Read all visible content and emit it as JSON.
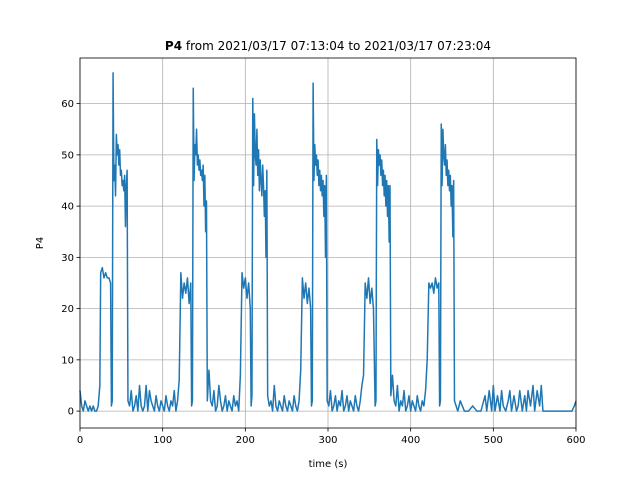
{
  "chart_data": {
    "type": "line",
    "title_bold": "P4",
    "title": "from 2021/03/17 07:13:04 to 2021/03/17 07:23:04",
    "xlabel": "time (s)",
    "ylabel": "P4",
    "color": "#1f77b4",
    "grid": true,
    "xlim": [
      0,
      600
    ],
    "xticks": [
      0,
      100,
      200,
      300,
      400,
      500,
      600
    ],
    "ylim": [
      -3.3,
      68.9
    ],
    "yticks": [
      0,
      10,
      20,
      30,
      40,
      50,
      60
    ],
    "x": [
      0,
      2,
      4,
      6,
      8,
      10,
      12,
      14,
      16,
      18,
      20,
      22,
      24,
      25,
      27,
      29,
      31,
      33,
      35,
      37,
      38,
      39,
      40,
      41,
      42,
      43,
      44,
      45,
      46,
      47,
      48,
      49,
      50,
      51,
      52,
      53,
      54,
      55,
      56,
      57,
      58,
      60,
      62,
      64,
      66,
      68,
      70,
      72,
      74,
      76,
      78,
      80,
      82,
      84,
      86,
      88,
      90,
      92,
      94,
      96,
      98,
      100,
      102,
      104,
      106,
      108,
      110,
      112,
      114,
      116,
      118,
      120,
      122,
      124,
      126,
      128,
      130,
      132,
      134,
      135,
      136,
      137,
      138,
      139,
      140,
      141,
      142,
      143,
      144,
      145,
      146,
      147,
      148,
      149,
      150,
      151,
      152,
      153,
      154,
      156,
      158,
      160,
      162,
      164,
      166,
      168,
      170,
      172,
      174,
      176,
      178,
      180,
      182,
      184,
      186,
      188,
      190,
      192,
      194,
      196,
      198,
      200,
      202,
      204,
      206,
      207,
      208,
      209,
      210,
      211,
      212,
      213,
      214,
      215,
      216,
      217,
      218,
      219,
      220,
      221,
      222,
      223,
      224,
      225,
      226,
      227,
      229,
      231,
      233,
      235,
      237,
      239,
      241,
      243,
      245,
      247,
      249,
      251,
      253,
      255,
      257,
      259,
      261,
      263,
      265,
      267,
      269,
      271,
      273,
      275,
      277,
      279,
      280,
      281,
      282,
      283,
      284,
      285,
      286,
      287,
      288,
      289,
      290,
      291,
      292,
      293,
      294,
      295,
      296,
      297,
      298,
      299,
      301,
      303,
      305,
      307,
      309,
      311,
      313,
      315,
      317,
      319,
      321,
      323,
      325,
      327,
      329,
      331,
      333,
      335,
      337,
      339,
      341,
      343,
      345,
      347,
      349,
      351,
      353,
      355,
      357,
      358,
      359,
      360,
      361,
      362,
      363,
      364,
      365,
      366,
      367,
      368,
      369,
      370,
      371,
      372,
      373,
      374,
      375,
      376,
      378,
      380,
      382,
      384,
      386,
      388,
      390,
      392,
      394,
      396,
      398,
      400,
      402,
      404,
      406,
      408,
      410,
      412,
      414,
      416,
      418,
      420,
      422,
      424,
      426,
      428,
      430,
      432,
      434,
      435,
      436,
      437,
      438,
      439,
      440,
      441,
      442,
      443,
      444,
      445,
      446,
      447,
      448,
      449,
      450,
      451,
      452,
      453,
      455,
      457,
      460,
      465,
      470,
      475,
      480,
      485,
      490,
      492,
      495,
      498,
      500,
      502,
      505,
      508,
      510,
      512,
      515,
      518,
      520,
      522,
      525,
      528,
      530,
      532,
      535,
      538,
      540,
      542,
      545,
      548,
      550,
      553,
      556,
      558,
      560,
      565,
      570,
      575,
      580,
      585,
      590,
      595,
      598,
      600
    ],
    "values": [
      4,
      1,
      0,
      2,
      1,
      0,
      1,
      0,
      1,
      0,
      0,
      1,
      5,
      27,
      28,
      26,
      27,
      26,
      26,
      25,
      1,
      2,
      66,
      45,
      48,
      42,
      54,
      50,
      52,
      48,
      51,
      46,
      47,
      44,
      45,
      43,
      46,
      36,
      44,
      47,
      2,
      1,
      4,
      0,
      1,
      3,
      0,
      5,
      1,
      0,
      1,
      5,
      0,
      4,
      2,
      1,
      0,
      3,
      1,
      0,
      2,
      1,
      0,
      3,
      1,
      0,
      2,
      1,
      4,
      0,
      2,
      6,
      27,
      22,
      25,
      23,
      26,
      21,
      25,
      1,
      2,
      63,
      45,
      52,
      50,
      55,
      48,
      50,
      47,
      49,
      46,
      47,
      45,
      48,
      40,
      46,
      35,
      41,
      2,
      8,
      2,
      1,
      4,
      0,
      1,
      5,
      2,
      0,
      1,
      3,
      0,
      2,
      1,
      0,
      3,
      1,
      2,
      0,
      7,
      27,
      24,
      26,
      22,
      25,
      20,
      1,
      3,
      61,
      44,
      58,
      50,
      48,
      55,
      46,
      51,
      43,
      49,
      45,
      42,
      48,
      44,
      38,
      43,
      30,
      47,
      3,
      1,
      2,
      0,
      5,
      1,
      0,
      2,
      1,
      0,
      3,
      1,
      0,
      2,
      1,
      0,
      3,
      1,
      0,
      2,
      8,
      26,
      22,
      25,
      21,
      24,
      20,
      1,
      2,
      64,
      45,
      52,
      48,
      50,
      46,
      49,
      44,
      47,
      43,
      46,
      42,
      45,
      38,
      44,
      30,
      46,
      2,
      1,
      4,
      0,
      1,
      3,
      0,
      2,
      1,
      4,
      0,
      1,
      3,
      0,
      2,
      1,
      0,
      3,
      1,
      0,
      2,
      5,
      7,
      25,
      22,
      26,
      21,
      24,
      20,
      1,
      2,
      53,
      44,
      51,
      48,
      50,
      46,
      49,
      44,
      47,
      42,
      46,
      40,
      45,
      38,
      44,
      33,
      44,
      3,
      7,
      2,
      1,
      5,
      0,
      2,
      1,
      4,
      0,
      1,
      3,
      0,
      2,
      1,
      0,
      3,
      1,
      0,
      2,
      1,
      4,
      10,
      25,
      24,
      25,
      23,
      26,
      24,
      25,
      1,
      2,
      56,
      44,
      55,
      50,
      48,
      52,
      46,
      49,
      44,
      47,
      43,
      46,
      40,
      44,
      34,
      45,
      2,
      1,
      0,
      2,
      0,
      0,
      1,
      0,
      0,
      3,
      0,
      4,
      0,
      5,
      0,
      3,
      0,
      4,
      1,
      0,
      2,
      4,
      0,
      3,
      0,
      1,
      4,
      0,
      3,
      0,
      4,
      1,
      5,
      0,
      4,
      1,
      5,
      0,
      0,
      0,
      0,
      0,
      0,
      0,
      0,
      1,
      2
    ]
  }
}
